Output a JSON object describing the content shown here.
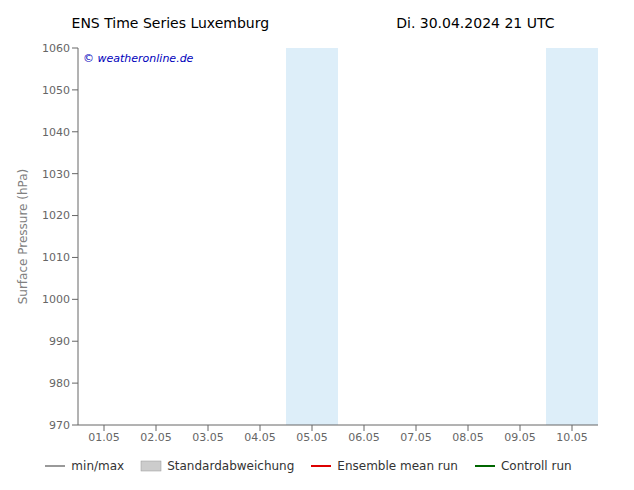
{
  "chart_data": {
    "type": "line",
    "title": "ENS Time Series Luxemburg",
    "subtitle": "Di. 30.04.2024 21 UTC",
    "ylabel": "Surface Pressure (hPa)",
    "categories": [
      "01.05",
      "02.05",
      "03.05",
      "04.05",
      "05.05",
      "06.05",
      "07.05",
      "08.05",
      "09.05",
      "10.05"
    ],
    "ylim": [
      970,
      1060
    ],
    "yticks": [
      970,
      980,
      990,
      1000,
      1010,
      1020,
      1030,
      1040,
      1050,
      1060
    ],
    "grid": false,
    "legend": "bottom",
    "series": [
      {
        "name": "min/max",
        "type": "line",
        "color": "#999999",
        "values": [
          null,
          null,
          null,
          null,
          null,
          null,
          null,
          null,
          null,
          null
        ]
      },
      {
        "name": "Standardabweichung",
        "type": "area",
        "color": "#cccccc",
        "values": [
          null,
          null,
          null,
          null,
          null,
          null,
          null,
          null,
          null,
          null
        ]
      },
      {
        "name": "Ensemble mean run",
        "type": "line",
        "color": "#dd0000",
        "values": [
          null,
          null,
          null,
          null,
          null,
          null,
          null,
          null,
          null,
          null
        ]
      },
      {
        "name": "Controll run",
        "type": "line",
        "color": "#006600",
        "values": [
          null,
          null,
          null,
          null,
          null,
          null,
          null,
          null,
          null,
          null
        ]
      }
    ],
    "shaded_regions": [
      {
        "category": "05.05",
        "color": "#ddeef9"
      },
      {
        "category": "10.05",
        "color": "#ddeef9"
      }
    ],
    "annotations": [
      {
        "text": "© weatheronline.de",
        "color": "#0000bb"
      }
    ]
  }
}
